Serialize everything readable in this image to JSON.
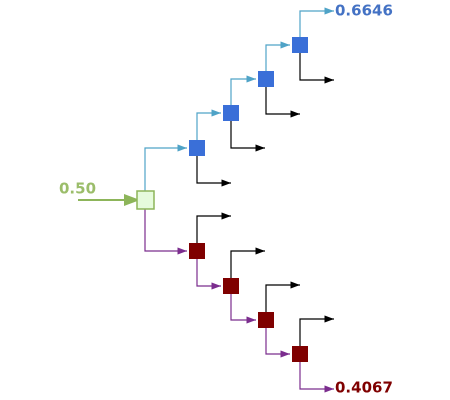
{
  "input": {
    "label": "0.50"
  },
  "outputs": {
    "top": {
      "label": "0.6646"
    },
    "bottom": {
      "label": "0.4067"
    }
  }
}
